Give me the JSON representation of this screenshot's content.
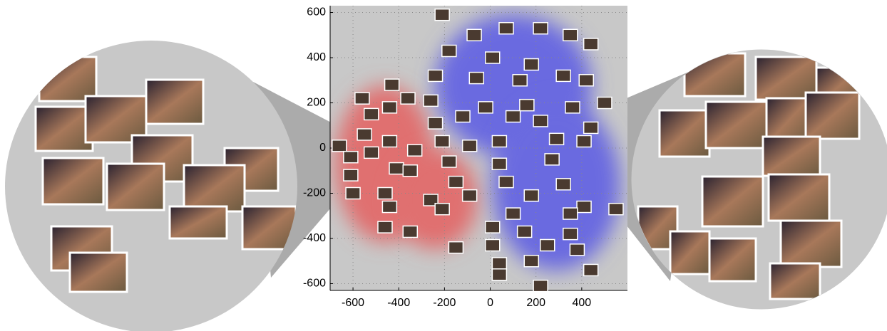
{
  "chart_data": {
    "type": "scatter",
    "x": [
      -210,
      -70,
      70,
      220,
      350,
      440,
      -180,
      10,
      180,
      -240,
      -60,
      130,
      320,
      420,
      -430,
      -360,
      -560,
      -260,
      -20,
      160,
      360,
      500,
      -520,
      -440,
      -240,
      -120,
      100,
      220,
      440,
      -660,
      -550,
      -440,
      -330,
      -210,
      -90,
      40,
      290,
      410,
      -610,
      -520,
      -410,
      -180,
      40,
      270,
      -610,
      -350,
      -150,
      70,
      320,
      -600,
      -460,
      -260,
      -90,
      180,
      410,
      550,
      -440,
      -210,
      100,
      350,
      -460,
      -350,
      10,
      150,
      350,
      -150,
      10,
      250,
      380,
      40,
      180,
      440,
      40,
      220
    ],
    "values": [
      590,
      500,
      530,
      530,
      500,
      460,
      430,
      400,
      370,
      320,
      310,
      300,
      320,
      300,
      280,
      220,
      220,
      210,
      180,
      190,
      180,
      200,
      150,
      180,
      110,
      140,
      140,
      120,
      90,
      10,
      60,
      30,
      -10,
      30,
      10,
      30,
      40,
      30,
      -40,
      -20,
      -90,
      -60,
      -70,
      -50,
      -120,
      -100,
      -150,
      -150,
      -160,
      -200,
      -200,
      -230,
      -210,
      -210,
      -260,
      -270,
      -260,
      -270,
      -290,
      -290,
      -350,
      -370,
      -350,
      -370,
      -380,
      -440,
      -430,
      -430,
      -450,
      -510,
      -500,
      -540,
      -560,
      -610
    ],
    "color": "#4a3a30",
    "xlim": [
      -700,
      600
    ],
    "ylim": [
      -630,
      630
    ],
    "xticks": [
      -600,
      -400,
      -200,
      0,
      200,
      400
    ],
    "yticks": [
      -600,
      -400,
      -200,
      0,
      200,
      400,
      600
    ],
    "grid": true
  }
}
